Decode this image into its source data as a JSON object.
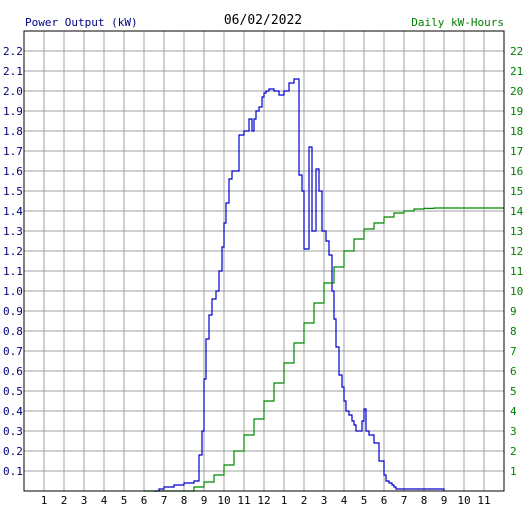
{
  "header": {
    "left_label": "Power Output (kW)",
    "date": "06/02/2022",
    "right_label": "Daily kW-Hours"
  },
  "colors": {
    "background": "#ffffff",
    "grid": "#a0a0a0",
    "frame": "#000000",
    "power_series": "#0000cc",
    "energy_series": "#008800",
    "left_axis_text": "#000080",
    "right_axis_text": "#008000",
    "date_text": "#000000"
  },
  "chart_data": {
    "type": "line",
    "title": "06/02/2022",
    "ylabel": "Power Output (kW)",
    "y2label": "Daily kW-Hours",
    "xlabel": "",
    "grid": true,
    "x_ticks": [
      "1",
      "2",
      "3",
      "4",
      "5",
      "6",
      "7",
      "8",
      "9",
      "10",
      "11",
      "12",
      "1",
      "2",
      "3",
      "4",
      "5",
      "6",
      "7",
      "8",
      "9",
      "10",
      "11"
    ],
    "xlim": [
      0,
      24
    ],
    "ylim": [
      0,
      2.3
    ],
    "y_ticks": [
      "0.1",
      "0.2",
      "0.3",
      "0.4",
      "0.5",
      "0.6",
      "0.7",
      "0.8",
      "0.9",
      "1.0",
      "1.1",
      "1.2",
      "1.3",
      "1.4",
      "1.5",
      "1.6",
      "1.7",
      "1.8",
      "1.9",
      "2.0",
      "2.1",
      "2.2"
    ],
    "y2lim": [
      0,
      23
    ],
    "y2_ticks": [
      "1",
      "2",
      "3",
      "4",
      "5",
      "6",
      "7",
      "8",
      "9",
      "10",
      "11",
      "12",
      "13",
      "14",
      "15",
      "16",
      "17",
      "18",
      "19",
      "20",
      "21",
      "22"
    ],
    "series": [
      {
        "name": "Power Output (kW)",
        "axis": "left",
        "x": [
          6.5,
          6.75,
          7,
          7.5,
          8,
          8.5,
          8.75,
          8.9,
          9.0,
          9.1,
          9.25,
          9.4,
          9.6,
          9.75,
          9.9,
          10.0,
          10.1,
          10.25,
          10.4,
          10.6,
          10.75,
          11.0,
          11.25,
          11.4,
          11.5,
          11.6,
          11.75,
          11.9,
          12.0,
          12.1,
          12.25,
          12.4,
          12.5,
          12.6,
          12.75,
          13.0,
          13.25,
          13.5,
          13.75,
          13.9,
          14.0,
          14.1,
          14.25,
          14.4,
          14.5,
          14.6,
          14.75,
          14.9,
          15.0,
          15.1,
          15.25,
          15.4,
          15.5,
          15.6,
          15.75,
          15.9,
          16.0,
          16.1,
          16.25,
          16.4,
          16.5,
          16.6,
          16.75,
          16.9,
          17.0,
          17.1,
          17.25,
          17.5,
          17.75,
          18.0,
          18.1,
          18.25,
          18.4,
          18.5,
          18.6,
          18.75,
          19.0,
          19.25,
          19.5,
          19.75,
          20.0,
          20.5,
          21.0,
          21.0
        ],
        "values": [
          0,
          0.01,
          0.02,
          0.03,
          0.04,
          0.05,
          0.18,
          0.3,
          0.56,
          0.76,
          0.88,
          0.96,
          1.0,
          1.1,
          1.22,
          1.34,
          1.44,
          1.56,
          1.6,
          1.6,
          1.78,
          1.8,
          1.86,
          1.8,
          1.86,
          1.9,
          1.92,
          1.97,
          1.99,
          2.0,
          2.01,
          2.01,
          2.0,
          2.0,
          1.98,
          2.0,
          2.04,
          2.06,
          1.58,
          1.5,
          1.21,
          1.21,
          1.72,
          1.3,
          1.3,
          1.61,
          1.5,
          1.3,
          1.3,
          1.25,
          1.18,
          1.0,
          0.86,
          0.72,
          0.58,
          0.52,
          0.45,
          0.4,
          0.38,
          0.35,
          0.33,
          0.3,
          0.3,
          0.35,
          0.41,
          0.3,
          0.28,
          0.24,
          0.15,
          0.08,
          0.05,
          0.04,
          0.03,
          0.02,
          0.01,
          0.01,
          0.01,
          0.01,
          0.01,
          0.01,
          0.01,
          0.01,
          0.01,
          0
        ]
      },
      {
        "name": "Daily kW-Hours",
        "axis": "right",
        "x": [
          6,
          7,
          8,
          8.5,
          9,
          9.5,
          10,
          10.5,
          11,
          11.5,
          12,
          12.5,
          13,
          13.5,
          14,
          14.5,
          15,
          15.5,
          16,
          16.5,
          17,
          17.5,
          18,
          18.5,
          19,
          19.5,
          20,
          20.5,
          21,
          22,
          23,
          24
        ],
        "values": [
          0,
          0,
          0,
          0.2,
          0.45,
          0.8,
          1.3,
          2.0,
          2.8,
          3.6,
          4.5,
          5.4,
          6.4,
          7.4,
          8.4,
          9.4,
          10.4,
          11.2,
          12.0,
          12.6,
          13.1,
          13.4,
          13.7,
          13.9,
          14.0,
          14.1,
          14.13,
          14.15,
          14.15,
          14.15,
          14.15,
          14.15
        ]
      }
    ]
  }
}
